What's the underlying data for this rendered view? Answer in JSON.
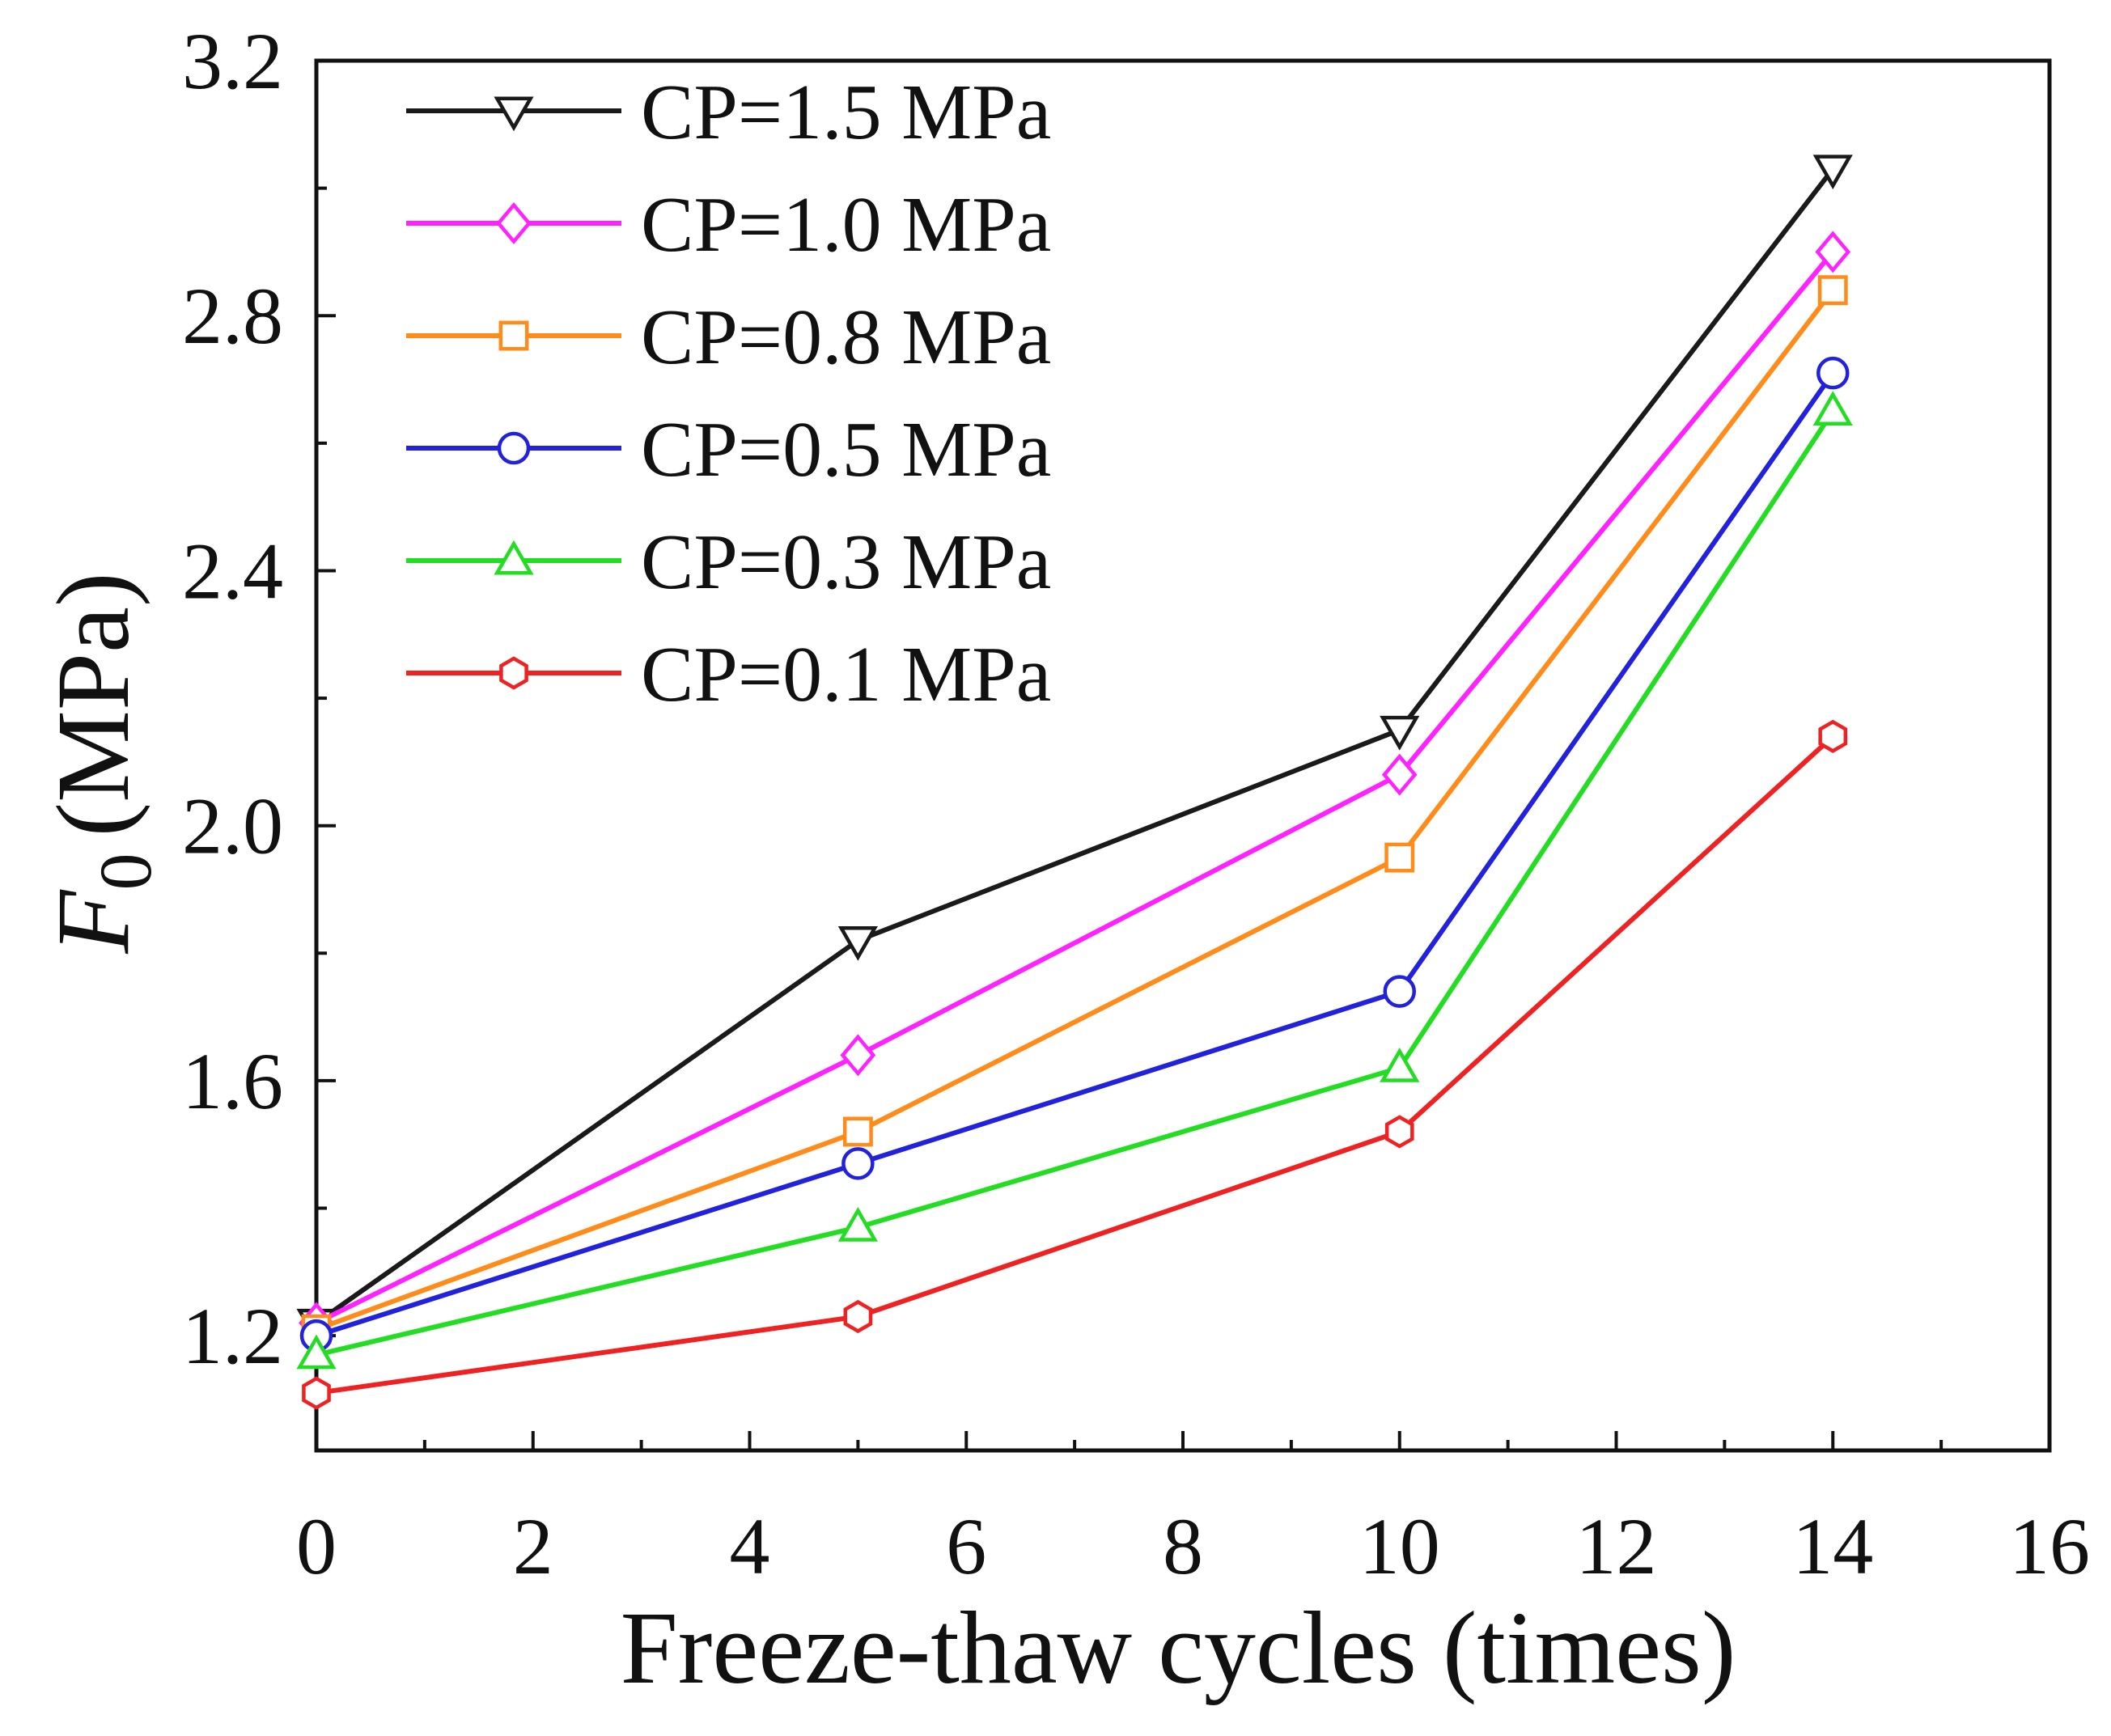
{
  "chart_data": {
    "type": "line",
    "xlabel": "Freeze-thaw cycles (times)",
    "ylabel": {
      "symbol": "F",
      "subscript": "0",
      "unit": "(MPa)"
    },
    "xlim": [
      0,
      16
    ],
    "ylim": [
      1.02,
      3.2
    ],
    "xticks": [
      "0",
      "2",
      "4",
      "6",
      "8",
      "10",
      "12",
      "14",
      "16"
    ],
    "yticks": [
      "1.2",
      "1.6",
      "2.0",
      "2.4",
      "2.8",
      "3.2"
    ],
    "x": [
      0,
      5,
      10,
      14
    ],
    "grid": false,
    "legend_position": "top-left",
    "series": [
      {
        "name": "CP=1.5 MPa",
        "color": "#1a1a1a",
        "marker": "triangle-down",
        "values": [
          1.22,
          1.82,
          2.15,
          3.03
        ]
      },
      {
        "name": "CP=1.0 MPa",
        "color": "#ff22ff",
        "marker": "diamond",
        "values": [
          1.22,
          1.64,
          2.08,
          2.9
        ]
      },
      {
        "name": "CP=0.8 MPa",
        "color": "#ff8c1a",
        "marker": "square",
        "values": [
          1.21,
          1.52,
          1.95,
          2.84
        ]
      },
      {
        "name": "CP=0.5 MPa",
        "color": "#2222dd",
        "marker": "circle",
        "values": [
          1.2,
          1.47,
          1.74,
          2.71
        ]
      },
      {
        "name": "CP=0.3 MPa",
        "color": "#22dd22",
        "marker": "triangle-up",
        "values": [
          1.17,
          1.37,
          1.62,
          2.65
        ]
      },
      {
        "name": "CP=0.1 MPa",
        "color": "#ee2222",
        "marker": "hexagon",
        "values": [
          1.11,
          1.23,
          1.52,
          2.14
        ]
      }
    ]
  }
}
